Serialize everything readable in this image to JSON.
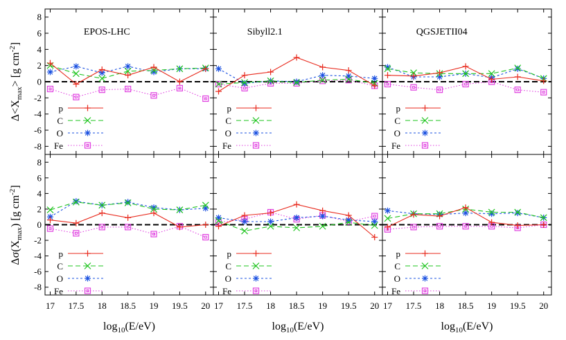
{
  "chart_data": {
    "type": "line",
    "x": [
      17,
      17.5,
      18,
      18.5,
      19,
      19.5,
      20
    ],
    "xticks": [
      "17",
      "17.5",
      "18",
      "18.5",
      "19",
      "19.5",
      "20"
    ],
    "yticks": [
      "8",
      "6",
      "4",
      "2",
      "0",
      "-2",
      "-4",
      "-6",
      "-8"
    ],
    "xlim": [
      16.9,
      20.15
    ],
    "ylim": [
      -9,
      9
    ],
    "xlabel_main": "log",
    "xlabel_sub": "10",
    "xlabel_rest": "(E/eV)",
    "ylabel_top": {
      "pre": "Δ<X",
      "sub": "max",
      "post": "> [g cm",
      "sup": "-2",
      "end": "]"
    },
    "ylabel_bottom": {
      "pre": "Δσ(X",
      "sub": "max",
      "post": ") [g cm",
      "sup": "-2",
      "end": "]"
    },
    "series_styles": [
      {
        "name": "p",
        "color": "#e8291c",
        "marker": "plus",
        "dash": ""
      },
      {
        "name": "C",
        "color": "#1fc41f",
        "marker": "cross",
        "dash": "7 4"
      },
      {
        "name": "O",
        "color": "#1a50e0",
        "marker": "star",
        "dash": "3 3"
      },
      {
        "name": "Fe",
        "color": "#e040e0",
        "marker": "square",
        "dash": "1.5 2.5"
      }
    ],
    "panels": [
      {
        "row": 0,
        "col": 0,
        "title": "EPOS-LHC",
        "series": [
          {
            "name": "p",
            "values": [
              2.3,
              -0.3,
              1.5,
              0.8,
              1.8,
              0.0,
              1.6
            ]
          },
          {
            "name": "C",
            "values": [
              2.0,
              1.0,
              0.4,
              1.3,
              1.4,
              1.6,
              1.7
            ]
          },
          {
            "name": "O",
            "values": [
              1.2,
              1.9,
              1.1,
              1.9,
              1.2,
              1.6,
              1.6
            ]
          },
          {
            "name": "Fe",
            "values": [
              -0.9,
              -1.9,
              -1.0,
              -0.9,
              -1.7,
              -0.8,
              -2.1
            ]
          }
        ]
      },
      {
        "row": 0,
        "col": 1,
        "title": "Sibyll2.1",
        "series": [
          {
            "name": "p",
            "values": [
              -1.2,
              0.8,
              1.2,
              3.0,
              1.8,
              1.4,
              -0.5
            ]
          },
          {
            "name": "C",
            "values": [
              -0.3,
              -0.1,
              0.1,
              -0.1,
              0.2,
              0.3,
              -0.2
            ]
          },
          {
            "name": "O",
            "values": [
              1.6,
              -0.2,
              0.1,
              0.0,
              0.8,
              0.7,
              0.4
            ]
          },
          {
            "name": "Fe",
            "values": [
              -0.3,
              -0.8,
              -0.2,
              -0.2,
              0.1,
              0.2,
              -0.5
            ]
          }
        ]
      },
      {
        "row": 0,
        "col": 2,
        "title": "QGSJETII04",
        "series": [
          {
            "name": "p",
            "values": [
              0.8,
              0.7,
              1.1,
              1.9,
              0.3,
              0.6,
              0.1
            ]
          },
          {
            "name": "C",
            "values": [
              1.6,
              1.1,
              1.0,
              1.0,
              1.0,
              1.7,
              0.4
            ]
          },
          {
            "name": "O",
            "values": [
              1.8,
              0.6,
              0.6,
              1.0,
              0.5,
              1.6,
              0.4
            ]
          },
          {
            "name": "Fe",
            "values": [
              -0.3,
              -0.7,
              -1.0,
              -0.3,
              0.0,
              -1.0,
              -1.3
            ]
          }
        ]
      },
      {
        "row": 1,
        "col": 0,
        "series": [
          {
            "name": "p",
            "values": [
              0.6,
              0.2,
              1.5,
              0.9,
              1.5,
              -0.3,
              0.0
            ]
          },
          {
            "name": "C",
            "values": [
              1.9,
              2.9,
              2.5,
              2.8,
              2.0,
              1.9,
              2.5
            ]
          },
          {
            "name": "O",
            "values": [
              1.0,
              3.0,
              2.5,
              2.9,
              2.2,
              1.9,
              2.1
            ]
          },
          {
            "name": "Fe",
            "values": [
              -0.5,
              -1.1,
              -0.3,
              -0.3,
              -1.2,
              -0.2,
              -1.6
            ]
          }
        ]
      },
      {
        "row": 1,
        "col": 1,
        "series": [
          {
            "name": "p",
            "values": [
              -0.2,
              1.2,
              1.5,
              2.6,
              1.8,
              1.2,
              -1.6
            ]
          },
          {
            "name": "C",
            "values": [
              0.5,
              -0.8,
              -0.2,
              -0.4,
              -0.2,
              0.3,
              -0.1
            ]
          },
          {
            "name": "O",
            "values": [
              0.9,
              0.4,
              0.4,
              0.9,
              1.1,
              0.6,
              0.4
            ]
          },
          {
            "name": "Fe",
            "values": [
              0.3,
              0.7,
              1.6,
              0.7,
              1.2,
              0.4,
              1.1
            ]
          }
        ]
      },
      {
        "row": 1,
        "col": 2,
        "series": [
          {
            "name": "p",
            "values": [
              -0.3,
              1.3,
              1.1,
              2.2,
              0.3,
              -0.1,
              0.0
            ]
          },
          {
            "name": "C",
            "values": [
              0.8,
              1.4,
              1.4,
              2.0,
              1.6,
              1.6,
              0.9
            ]
          },
          {
            "name": "O",
            "values": [
              1.8,
              1.4,
              1.3,
              1.5,
              1.4,
              1.5,
              0.9
            ]
          },
          {
            "name": "Fe",
            "values": [
              -0.6,
              -0.3,
              -0.2,
              -0.2,
              -0.2,
              -0.4,
              0.0
            ]
          }
        ]
      }
    ]
  }
}
